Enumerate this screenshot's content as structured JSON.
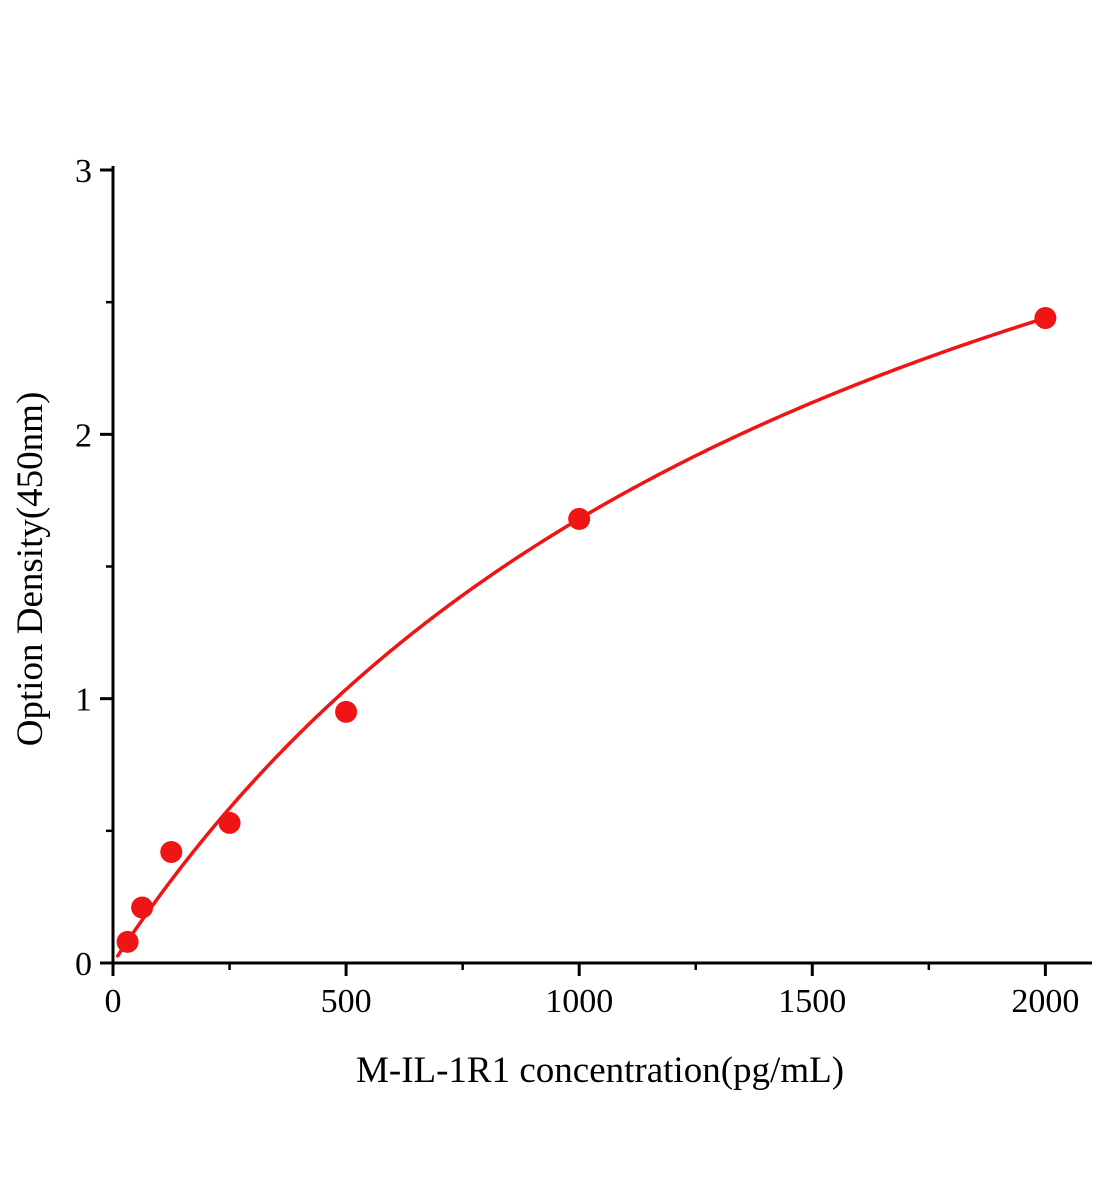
{
  "chart_data": {
    "type": "scatter",
    "title": "",
    "xlabel": "M-IL-1R1 concentration(pg/mL)",
    "ylabel": "Option Density(450nm)",
    "x": [
      31.25,
      62.5,
      125,
      250,
      500,
      1000,
      2000
    ],
    "y": [
      0.08,
      0.21,
      0.42,
      0.53,
      0.95,
      1.68,
      2.44
    ],
    "xlim": [
      0,
      2100
    ],
    "ylim": [
      0,
      3
    ],
    "x_ticks": {
      "major": [
        0,
        500,
        1000,
        1500,
        2000
      ],
      "major_labels": [
        "0",
        "500",
        "1000",
        "1500",
        "2000"
      ],
      "minor": [
        250,
        750,
        1250,
        1750
      ]
    },
    "y_ticks": {
      "major": [
        0,
        1,
        2,
        3
      ],
      "major_labels": [
        "0",
        "1",
        "2",
        "3"
      ],
      "minor": [
        0.5,
        1.5,
        2.5
      ]
    },
    "legend": "none",
    "grid": "off",
    "curve_fit": "saturation",
    "colors": {
      "marker": "#f01515",
      "line": "#f01515",
      "axis": "#000000"
    }
  }
}
